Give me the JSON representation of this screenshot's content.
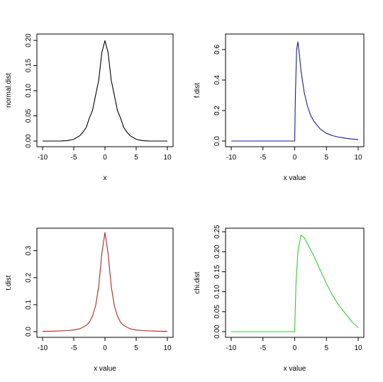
{
  "chart_data": [
    {
      "type": "line",
      "xlabel": "x",
      "ylabel": "normal.dist",
      "xlim": [
        -10,
        10
      ],
      "ylim": [
        0,
        0.2
      ],
      "xticks": [
        -10,
        -5,
        0,
        5,
        10
      ],
      "yticks": [
        0,
        0.05,
        0.1,
        0.15,
        0.2
      ],
      "ytick_labels": [
        "0.00",
        "0.05",
        "0.10",
        "0.15",
        "0.20"
      ],
      "color": "#000000",
      "series": [
        {
          "x": [
            -10,
            -9,
            -8,
            -7,
            -6,
            -5,
            -4,
            -3.5,
            -3,
            -2.5,
            -2,
            -1.5,
            -1,
            -0.5,
            0,
            0.5,
            1,
            1.5,
            2,
            2.5,
            3,
            3.5,
            4,
            5,
            6,
            7,
            8,
            9,
            10
          ],
          "values": [
            0,
            0,
            0,
            0.0001,
            0.0009,
            0.0035,
            0.0108,
            0.0181,
            0.027,
            0.0456,
            0.0605,
            0.091,
            0.121,
            0.176,
            0.1995,
            0.176,
            0.121,
            0.091,
            0.0605,
            0.0456,
            0.027,
            0.0181,
            0.0108,
            0.0035,
            0.0009,
            0.0001,
            0,
            0,
            0
          ]
        }
      ]
    },
    {
      "type": "line",
      "xlabel": "x value",
      "ylabel": "f.dist",
      "xlim": [
        -10,
        10
      ],
      "ylim": [
        0,
        0.66
      ],
      "xticks": [
        -10,
        -5,
        0,
        5,
        10
      ],
      "yticks": [
        0,
        0.2,
        0.4,
        0.6
      ],
      "ytick_labels": [
        "0.0",
        "0.2",
        "0.4",
        "0.6"
      ],
      "color": "#1a1a9c",
      "series": [
        {
          "x": [
            -10,
            -5,
            0,
            0.1,
            0.3,
            0.5,
            0.7,
            1,
            1.5,
            2,
            2.5,
            3,
            4,
            5,
            6,
            7,
            8,
            9,
            10
          ],
          "values": [
            0,
            0,
            0,
            0.28,
            0.6,
            0.65,
            0.58,
            0.46,
            0.32,
            0.23,
            0.17,
            0.13,
            0.08,
            0.05,
            0.035,
            0.025,
            0.018,
            0.013,
            0.01
          ]
        }
      ]
    },
    {
      "type": "line",
      "xlabel": "x value",
      "ylabel": "t.dist",
      "xlim": [
        -10,
        10
      ],
      "ylim": [
        0,
        0.37
      ],
      "xticks": [
        -10,
        -5,
        0,
        5,
        10
      ],
      "yticks": [
        0,
        0.1,
        0.2,
        0.3
      ],
      "ytick_labels": [
        "0.0",
        "0.1",
        "0.2",
        "0.3"
      ],
      "color": "#b22222",
      "series": [
        {
          "x": [
            -10,
            -8,
            -6,
            -5,
            -4,
            -3,
            -2.5,
            -2,
            -1.5,
            -1,
            -0.5,
            0,
            0.5,
            1,
            1.5,
            2,
            2.5,
            3,
            4,
            5,
            6,
            8,
            10
          ],
          "values": [
            0.001,
            0.002,
            0.004,
            0.006,
            0.011,
            0.023,
            0.035,
            0.058,
            0.096,
            0.168,
            0.29,
            0.367,
            0.29,
            0.168,
            0.096,
            0.058,
            0.035,
            0.023,
            0.011,
            0.006,
            0.004,
            0.002,
            0.001
          ]
        }
      ]
    },
    {
      "type": "line",
      "xlabel": "x value",
      "ylabel": "chi.dist",
      "xlim": [
        -10,
        10
      ],
      "ylim": [
        0,
        0.25
      ],
      "xticks": [
        -10,
        -5,
        0,
        5,
        10
      ],
      "yticks": [
        0,
        0.05,
        0.1,
        0.15,
        0.2,
        0.25
      ],
      "ytick_labels": [
        "0.00",
        "0.05",
        "0.10",
        "0.15",
        "0.20",
        "0.25"
      ],
      "color": "#33cc33",
      "series": [
        {
          "x": [
            -10,
            -5,
            0,
            0.2,
            0.5,
            1,
            1.5,
            2,
            3,
            4,
            5,
            6,
            7,
            8,
            9,
            10
          ],
          "values": [
            0,
            0,
            0,
            0.12,
            0.2,
            0.242,
            0.235,
            0.22,
            0.19,
            0.155,
            0.12,
            0.09,
            0.065,
            0.045,
            0.025,
            0.01
          ]
        }
      ]
    }
  ]
}
